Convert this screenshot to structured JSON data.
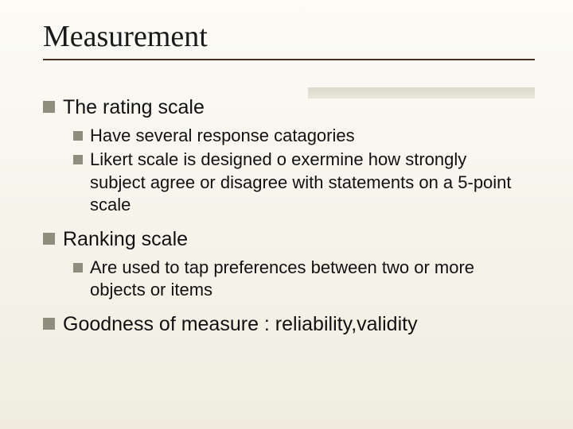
{
  "title": "Measurement",
  "colors": {
    "background_top": "#fcfbf6",
    "background_bottom": "#f0ede0",
    "title_color": "#1a1a1a",
    "underline_color": "#443322",
    "bullet_color": "#8e8e7e",
    "text_color": "#111111",
    "shadow_bar_color": "#c4beb0"
  },
  "typography": {
    "title_font": "Times New Roman",
    "title_size_pt": 28,
    "body_font": "Arial",
    "level1_size_pt": 19,
    "level2_size_pt": 16
  },
  "items": [
    {
      "text": "The rating scale",
      "children": [
        {
          "text": "Have several response catagories"
        },
        {
          "text": "Likert scale is designed o exermine how strongly subject agree or disagree with statements on a 5-point scale"
        }
      ]
    },
    {
      "text": "Ranking scale",
      "children": [
        {
          "text": "Are used to tap preferences between two or more objects or items"
        }
      ]
    },
    {
      "text": "Goodness of measure : reliability,validity",
      "children": []
    }
  ]
}
